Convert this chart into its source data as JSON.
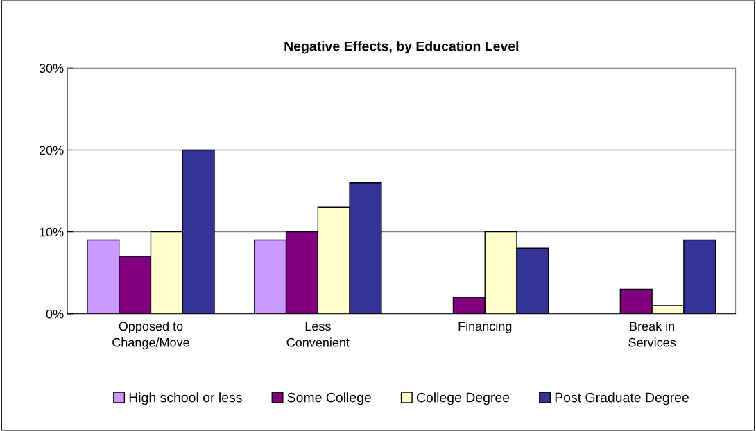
{
  "chart_data": {
    "type": "bar",
    "title": "Negative Effects, by Education Level",
    "categories": [
      "Opposed to\nChange/Move",
      "Less\nConvenient",
      "Financing",
      "Break in\nServices"
    ],
    "series": [
      {
        "name": "High school or less",
        "color": "#cc99ff",
        "values": [
          9,
          9,
          null,
          null
        ]
      },
      {
        "name": "Some College",
        "color": "#800080",
        "values": [
          7,
          10,
          2,
          3
        ]
      },
      {
        "name": "College Degree",
        "color": "#ffffcc",
        "values": [
          10,
          13,
          10,
          1
        ]
      },
      {
        "name": "Post Graduate Degree",
        "color": "#333399",
        "values": [
          20,
          16,
          8,
          9
        ]
      }
    ],
    "ylim": [
      0,
      30
    ],
    "yticks": [
      {
        "value": 0,
        "label": "0%"
      },
      {
        "value": 10,
        "label": "10%"
      },
      {
        "value": 20,
        "label": "20%"
      },
      {
        "value": 30,
        "label": "30%"
      }
    ],
    "grid": "y",
    "legend": "bottom"
  }
}
